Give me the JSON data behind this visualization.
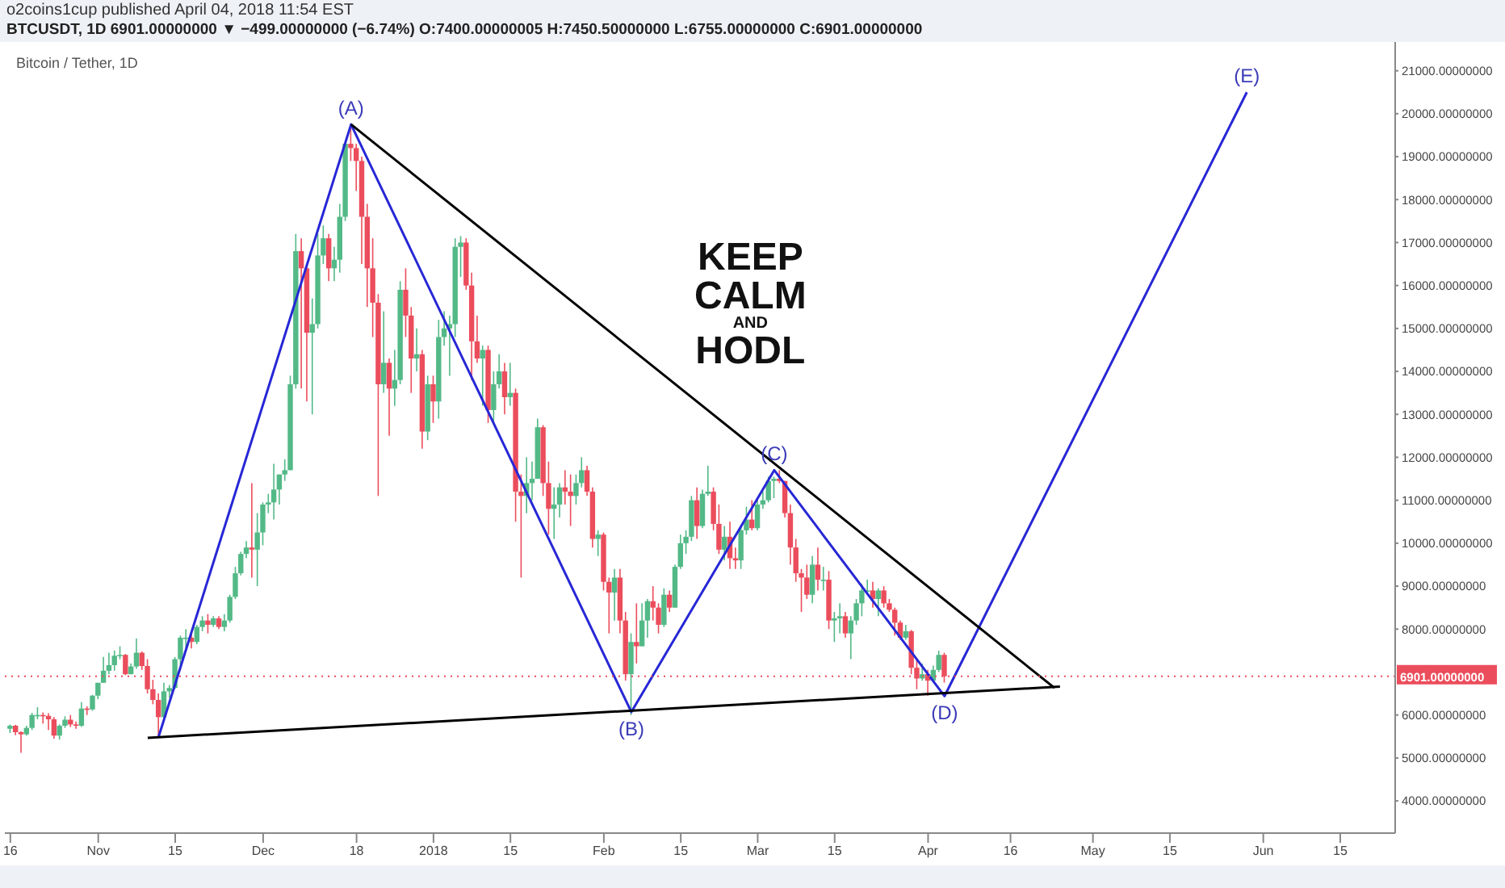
{
  "chart_data": {
    "type": "candlestick",
    "title": "Bitcoin / Tether, 1D",
    "annotations": [
      "o2coins1cup published April 04, 2018 11:54 EST",
      "BTCUSDT, 1D  6901.00000000 ▼ −499.00000000 (−6.74%) O:7400.00000005 H:7450.50000000 L:6755.00000000 C:6901.00000000",
      "KEEP CALM AND HODL",
      {
        "text": "(A)",
        "x": "2017-12-17",
        "y": 19750
      },
      {
        "text": "(B)",
        "x": "2018-02-06",
        "y": 6070
      },
      {
        "text": "(C)",
        "x": "2018-03-04",
        "y": 11700
      },
      {
        "text": "(D)",
        "x": "2018-04-04",
        "y": 6440
      },
      {
        "text": "(E)",
        "x": "2018-05-29",
        "y": 20500
      }
    ],
    "x": [
      "2017-10-16",
      "2017-10-17",
      "2017-10-18",
      "2017-10-19",
      "2017-10-20",
      "2017-10-21",
      "2017-10-22",
      "2017-10-23",
      "2017-10-24",
      "2017-10-25",
      "2017-10-26",
      "2017-10-27",
      "2017-10-28",
      "2017-10-29",
      "2017-10-30",
      "2017-10-31",
      "2017-11-01",
      "2017-11-02",
      "2017-11-03",
      "2017-11-04",
      "2017-11-05",
      "2017-11-06",
      "2017-11-07",
      "2017-11-08",
      "2017-11-09",
      "2017-11-10",
      "2017-11-11",
      "2017-11-12",
      "2017-11-13",
      "2017-11-14",
      "2017-11-15",
      "2017-11-16",
      "2017-11-17",
      "2017-11-18",
      "2017-11-19",
      "2017-11-20",
      "2017-11-21",
      "2017-11-22",
      "2017-11-23",
      "2017-11-24",
      "2017-11-25",
      "2017-11-26",
      "2017-11-27",
      "2017-11-28",
      "2017-11-29",
      "2017-11-30",
      "2017-12-01",
      "2017-12-02",
      "2017-12-03",
      "2017-12-04",
      "2017-12-05",
      "2017-12-06",
      "2017-12-07",
      "2017-12-08",
      "2017-12-09",
      "2017-12-10",
      "2017-12-11",
      "2017-12-12",
      "2017-12-13",
      "2017-12-14",
      "2017-12-15",
      "2017-12-16",
      "2017-12-17",
      "2017-12-18",
      "2017-12-19",
      "2017-12-20",
      "2017-12-21",
      "2017-12-22",
      "2017-12-23",
      "2017-12-24",
      "2017-12-25",
      "2017-12-26",
      "2017-12-27",
      "2017-12-28",
      "2017-12-29",
      "2017-12-30",
      "2017-12-31",
      "2018-01-01",
      "2018-01-02",
      "2018-01-03",
      "2018-01-04",
      "2018-01-05",
      "2018-01-06",
      "2018-01-07",
      "2018-01-08",
      "2018-01-09",
      "2018-01-10",
      "2018-01-11",
      "2018-01-12",
      "2018-01-13",
      "2018-01-14",
      "2018-01-15",
      "2018-01-16",
      "2018-01-17",
      "2018-01-18",
      "2018-01-19",
      "2018-01-20",
      "2018-01-21",
      "2018-01-22",
      "2018-01-23",
      "2018-01-24",
      "2018-01-25",
      "2018-01-26",
      "2018-01-27",
      "2018-01-28",
      "2018-01-29",
      "2018-01-30",
      "2018-01-31",
      "2018-02-01",
      "2018-02-02",
      "2018-02-03",
      "2018-02-04",
      "2018-02-05",
      "2018-02-06",
      "2018-02-07",
      "2018-02-08",
      "2018-02-09",
      "2018-02-10",
      "2018-02-11",
      "2018-02-12",
      "2018-02-13",
      "2018-02-14",
      "2018-02-15",
      "2018-02-16",
      "2018-02-17",
      "2018-02-18",
      "2018-02-19",
      "2018-02-20",
      "2018-02-21",
      "2018-02-22",
      "2018-02-23",
      "2018-02-24",
      "2018-02-25",
      "2018-02-26",
      "2018-02-27",
      "2018-02-28",
      "2018-03-01",
      "2018-03-02",
      "2018-03-03",
      "2018-03-04",
      "2018-03-05",
      "2018-03-06",
      "2018-03-07",
      "2018-03-08",
      "2018-03-09",
      "2018-03-10",
      "2018-03-11",
      "2018-03-12",
      "2018-03-13",
      "2018-03-14",
      "2018-03-15",
      "2018-03-16",
      "2018-03-17",
      "2018-03-18",
      "2018-03-19",
      "2018-03-20",
      "2018-03-21",
      "2018-03-22",
      "2018-03-23",
      "2018-03-24",
      "2018-03-25",
      "2018-03-26",
      "2018-03-27",
      "2018-03-28",
      "2018-03-29",
      "2018-03-30",
      "2018-03-31",
      "2018-04-01",
      "2018-04-02",
      "2018-04-03",
      "2018-04-04"
    ],
    "ohlc": [
      [
        5680,
        5780,
        5580,
        5750
      ],
      [
        5750,
        5770,
        5530,
        5600
      ],
      [
        5600,
        5620,
        5120,
        5550
      ],
      [
        5550,
        5750,
        5520,
        5700
      ],
      [
        5700,
        6050,
        5650,
        6000
      ],
      [
        6000,
        6180,
        5900,
        6000
      ],
      [
        6000,
        6060,
        5800,
        5980
      ],
      [
        5980,
        6040,
        5650,
        5900
      ],
      [
        5900,
        5950,
        5450,
        5520
      ],
      [
        5520,
        5780,
        5430,
        5750
      ],
      [
        5750,
        5970,
        5700,
        5890
      ],
      [
        5890,
        6000,
        5720,
        5780
      ],
      [
        5780,
        5850,
        5680,
        5750
      ],
      [
        5750,
        6300,
        5720,
        6150
      ],
      [
        6150,
        6200,
        6000,
        6130
      ],
      [
        6130,
        6470,
        6100,
        6450
      ],
      [
        6450,
        6750,
        6370,
        6750
      ],
      [
        6750,
        7350,
        6750,
        7030
      ],
      [
        7030,
        7450,
        6950,
        7160
      ],
      [
        7160,
        7500,
        7030,
        7380
      ],
      [
        7380,
        7600,
        7300,
        7400
      ],
      [
        7400,
        7420,
        6930,
        6950
      ],
      [
        6950,
        7200,
        6950,
        7130
      ],
      [
        7130,
        7780,
        7080,
        7450
      ],
      [
        7450,
        7480,
        7050,
        7140
      ],
      [
        7140,
        7300,
        6500,
        6600
      ],
      [
        6600,
        6820,
        6250,
        6350
      ],
      [
        6350,
        6500,
        5500,
        5950
      ],
      [
        5950,
        6750,
        5850,
        6550
      ],
      [
        6550,
        6700,
        6400,
        6630
      ],
      [
        6630,
        7350,
        6600,
        7300
      ],
      [
        7300,
        7850,
        7150,
        7800
      ],
      [
        7800,
        8000,
        7550,
        7800
      ],
      [
        7800,
        7900,
        7550,
        7700
      ],
      [
        7700,
        8100,
        7650,
        8050
      ],
      [
        8050,
        8300,
        7950,
        8200
      ],
      [
        8200,
        8350,
        7900,
        8100
      ],
      [
        8100,
        8300,
        8050,
        8250
      ],
      [
        8250,
        8300,
        8000,
        8050
      ],
      [
        8050,
        8350,
        7950,
        8200
      ],
      [
        8200,
        8800,
        8150,
        8750
      ],
      [
        8750,
        9450,
        8700,
        9300
      ],
      [
        9300,
        9800,
        9250,
        9750
      ],
      [
        9750,
        10050,
        9650,
        9900
      ],
      [
        9900,
        11400,
        9200,
        9850
      ],
      [
        9850,
        10700,
        9000,
        10250
      ],
      [
        10250,
        10950,
        9950,
        10900
      ],
      [
        10900,
        11150,
        10700,
        10950
      ],
      [
        10950,
        11850,
        10550,
        11250
      ],
      [
        11250,
        11600,
        10900,
        11600
      ],
      [
        11600,
        11950,
        11450,
        11700
      ],
      [
        11700,
        13900,
        11700,
        13700
      ],
      [
        13700,
        17200,
        13600,
        16800
      ],
      [
        16800,
        17100,
        13600,
        16400
      ],
      [
        16400,
        16500,
        13300,
        14900
      ],
      [
        14900,
        15700,
        13000,
        15100
      ],
      [
        15100,
        17200,
        15000,
        16700
      ],
      [
        16700,
        17400,
        16500,
        17100
      ],
      [
        17100,
        17200,
        16100,
        16400
      ],
      [
        16400,
        16900,
        16100,
        16600
      ],
      [
        16600,
        17900,
        16300,
        17600
      ],
      [
        17600,
        19300,
        17500,
        19300
      ],
      [
        19300,
        19750,
        18900,
        19200
      ],
      [
        19200,
        19300,
        18200,
        18900
      ],
      [
        18900,
        19000,
        16500,
        17600
      ],
      [
        17600,
        17900,
        15500,
        16400
      ],
      [
        16400,
        17100,
        14800,
        15600
      ],
      [
        15600,
        15800,
        11100,
        13700
      ],
      [
        13700,
        15400,
        13500,
        14200
      ],
      [
        14200,
        14300,
        12500,
        13600
      ],
      [
        13600,
        14500,
        13200,
        13800
      ],
      [
        13800,
        16100,
        13700,
        15900
      ],
      [
        15900,
        16400,
        14800,
        15300
      ],
      [
        15300,
        15500,
        13500,
        14300
      ],
      [
        14300,
        15000,
        14000,
        14400
      ],
      [
        14400,
        14500,
        12200,
        12600
      ],
      [
        12600,
        13900,
        12400,
        13700
      ],
      [
        13700,
        13900,
        12800,
        13300
      ],
      [
        13300,
        15200,
        12900,
        14800
      ],
      [
        14800,
        15400,
        14600,
        15000
      ],
      [
        15000,
        15300,
        13900,
        15100
      ],
      [
        15100,
        17100,
        14800,
        16900
      ],
      [
        16900,
        17150,
        16200,
        17000
      ],
      [
        17000,
        17100,
        15900,
        16000
      ],
      [
        16000,
        16300,
        13800,
        14700
      ],
      [
        14700,
        15300,
        14200,
        14300
      ],
      [
        14300,
        14600,
        13200,
        14500
      ],
      [
        14500,
        14600,
        12800,
        13100
      ],
      [
        13100,
        14000,
        12800,
        13700
      ],
      [
        13700,
        14400,
        13600,
        14000
      ],
      [
        14000,
        14200,
        13000,
        13400
      ],
      [
        13400,
        14200,
        13200,
        13500
      ],
      [
        13500,
        13600,
        10500,
        11200
      ],
      [
        11200,
        11600,
        9200,
        11100
      ],
      [
        11100,
        12000,
        10700,
        11400
      ],
      [
        11400,
        11900,
        11000,
        11500
      ],
      [
        11500,
        12900,
        11500,
        12700
      ],
      [
        12700,
        12750,
        11100,
        11400
      ],
      [
        11400,
        11900,
        10200,
        10800
      ],
      [
        10800,
        11300,
        10100,
        10900
      ],
      [
        10900,
        11400,
        10600,
        11300
      ],
      [
        11300,
        11700,
        10900,
        11200
      ],
      [
        11200,
        11600,
        10400,
        11100
      ],
      [
        11100,
        11600,
        10900,
        11400
      ],
      [
        11400,
        12000,
        11300,
        11700
      ],
      [
        11700,
        11800,
        11100,
        11200
      ],
      [
        11200,
        11300,
        9900,
        10100
      ],
      [
        10100,
        10300,
        9700,
        10200
      ],
      [
        10200,
        10250,
        8900,
        9100
      ],
      [
        9100,
        9200,
        7900,
        8850
      ],
      [
        8850,
        9400,
        8200,
        9200
      ],
      [
        9200,
        9400,
        7900,
        8200
      ],
      [
        8200,
        8400,
        6800,
        6950
      ],
      [
        6950,
        7900,
        6000,
        7700
      ],
      [
        7700,
        8600,
        7200,
        7600
      ],
      [
        7600,
        8600,
        7600,
        8200
      ],
      [
        8200,
        8700,
        7800,
        8650
      ],
      [
        8650,
        9000,
        8200,
        8500
      ],
      [
        8500,
        8600,
        7900,
        8100
      ],
      [
        8100,
        8950,
        8050,
        8800
      ],
      [
        8800,
        8900,
        8400,
        8500
      ],
      [
        8500,
        9500,
        8500,
        9450
      ],
      [
        9450,
        10200,
        9400,
        10000
      ],
      [
        10000,
        10300,
        9750,
        10150
      ],
      [
        10150,
        11100,
        10050,
        11000
      ],
      [
        11000,
        11300,
        10100,
        10400
      ],
      [
        10400,
        11250,
        10350,
        11150
      ],
      [
        11150,
        11800,
        11100,
        11200
      ],
      [
        11200,
        11300,
        10300,
        10450
      ],
      [
        10450,
        10900,
        9750,
        9850
      ],
      [
        9850,
        10400,
        9600,
        10150
      ],
      [
        10150,
        10500,
        9400,
        9650
      ],
      [
        9650,
        9900,
        9400,
        9600
      ],
      [
        9600,
        10400,
        9400,
        10300
      ],
      [
        10300,
        10850,
        10200,
        10550
      ],
      [
        10550,
        11000,
        10300,
        10350
      ],
      [
        10350,
        11050,
        10300,
        10900
      ],
      [
        10900,
        11200,
        10800,
        11000
      ],
      [
        11000,
        11550,
        10950,
        11450
      ],
      [
        11450,
        11550,
        11050,
        11500
      ],
      [
        11500,
        11700,
        11400,
        11450
      ],
      [
        11450,
        11450,
        10600,
        10700
      ],
      [
        10700,
        10900,
        9500,
        9900
      ],
      [
        9900,
        10100,
        9100,
        9300
      ],
      [
        9300,
        9400,
        8400,
        9200
      ],
      [
        9200,
        9500,
        8700,
        8800
      ],
      [
        8800,
        9700,
        8600,
        9500
      ],
      [
        9500,
        9900,
        8900,
        9150
      ],
      [
        9150,
        9450,
        8900,
        9150
      ],
      [
        9150,
        9350,
        8000,
        8200
      ],
      [
        8200,
        8400,
        7700,
        8250
      ],
      [
        8250,
        8600,
        7900,
        8300
      ],
      [
        8300,
        8400,
        7800,
        7900
      ],
      [
        7900,
        8300,
        7300,
        8200
      ],
      [
        8200,
        8700,
        8100,
        8600
      ],
      [
        8600,
        9050,
        8300,
        8900
      ],
      [
        8900,
        9150,
        8800,
        8900
      ],
      [
        8900,
        9100,
        8500,
        8700
      ],
      [
        8700,
        8950,
        8300,
        8900
      ],
      [
        8900,
        9000,
        8500,
        8600
      ],
      [
        8600,
        8700,
        8400,
        8450
      ],
      [
        8450,
        8500,
        7850,
        8150
      ],
      [
        8150,
        8200,
        7750,
        7800
      ],
      [
        7800,
        8100,
        7750,
        7950
      ],
      [
        7950,
        7980,
        6950,
        7100
      ],
      [
        7100,
        7300,
        6600,
        6850
      ],
      [
        6850,
        7200,
        6800,
        6950
      ],
      [
        6950,
        7050,
        6450,
        6800
      ],
      [
        6800,
        7150,
        6750,
        7050
      ],
      [
        7050,
        7500,
        7000,
        7400
      ],
      [
        7400,
        7450.5,
        6755,
        6901
      ]
    ],
    "series": [
      {
        "type": "line",
        "color": "#2727d6",
        "x": [
          "2017-11-12",
          "2017-12-17",
          "2018-02-06",
          "2018-03-04",
          "2018-04-04",
          "2018-05-29"
        ],
        "values": [
          5500,
          19750,
          6070,
          11700,
          6440,
          20500
        ]
      },
      {
        "type": "line",
        "color": "#000000",
        "x": [
          "2017-12-17",
          "2018-04-24"
        ],
        "values": [
          19750,
          6630
        ]
      },
      {
        "type": "line",
        "color": "#000000",
        "x": [
          "2017-11-10",
          "2018-04-25"
        ],
        "values": [
          5470,
          6660
        ]
      }
    ],
    "ref_lines": [
      {
        "axis": "y",
        "value": 6901,
        "label": "6901.00000000",
        "color": "#eb4d5c",
        "line_style": "dotted"
      }
    ],
    "xlim": [
      "2017-10-15",
      "2018-06-25"
    ],
    "xticks": [
      {
        "value": "2017-10-16",
        "label": "16"
      },
      {
        "value": "2017-11-01",
        "label": "Nov"
      },
      {
        "value": "2017-11-15",
        "label": "15"
      },
      {
        "value": "2017-12-01",
        "label": "Dec"
      },
      {
        "value": "2017-12-18",
        "label": "18"
      },
      {
        "value": "2018-01-01",
        "label": "2018"
      },
      {
        "value": "2018-01-15",
        "label": "15"
      },
      {
        "value": "2018-02-01",
        "label": "Feb"
      },
      {
        "value": "2018-02-15",
        "label": "15"
      },
      {
        "value": "2018-03-01",
        "label": "Mar"
      },
      {
        "value": "2018-03-15",
        "label": "15"
      },
      {
        "value": "2018-04-01",
        "label": "Apr"
      },
      {
        "value": "2018-04-16",
        "label": "16"
      },
      {
        "value": "2018-05-01",
        "label": "May"
      },
      {
        "value": "2018-05-15",
        "label": "15"
      },
      {
        "value": "2018-06-01",
        "label": "Jun"
      },
      {
        "value": "2018-06-15",
        "label": "15"
      }
    ],
    "ylim": [
      3250,
      21670
    ],
    "yticks": [
      {
        "value": 4000,
        "label": "4000.00000000"
      },
      {
        "value": 5000,
        "label": "5000.00000000"
      },
      {
        "value": 6000,
        "label": "6000.00000000"
      },
      {
        "value": 8000,
        "label": "8000.00000000"
      },
      {
        "value": 9000,
        "label": "9000.00000000"
      },
      {
        "value": 10000,
        "label": "10000.00000000"
      },
      {
        "value": 11000,
        "label": "11000.00000000"
      },
      {
        "value": 12000,
        "label": "12000.00000000"
      },
      {
        "value": 13000,
        "label": "13000.00000000"
      },
      {
        "value": 14000,
        "label": "14000.00000000"
      },
      {
        "value": 15000,
        "label": "15000.00000000"
      },
      {
        "value": 16000,
        "label": "16000.00000000"
      },
      {
        "value": 17000,
        "label": "17000.00000000"
      },
      {
        "value": 18000,
        "label": "18000.00000000"
      },
      {
        "value": 19000,
        "label": "19000.00000000"
      },
      {
        "value": 20000,
        "label": "20000.00000000"
      },
      {
        "value": 21000,
        "label": "21000.00000000"
      }
    ]
  }
}
